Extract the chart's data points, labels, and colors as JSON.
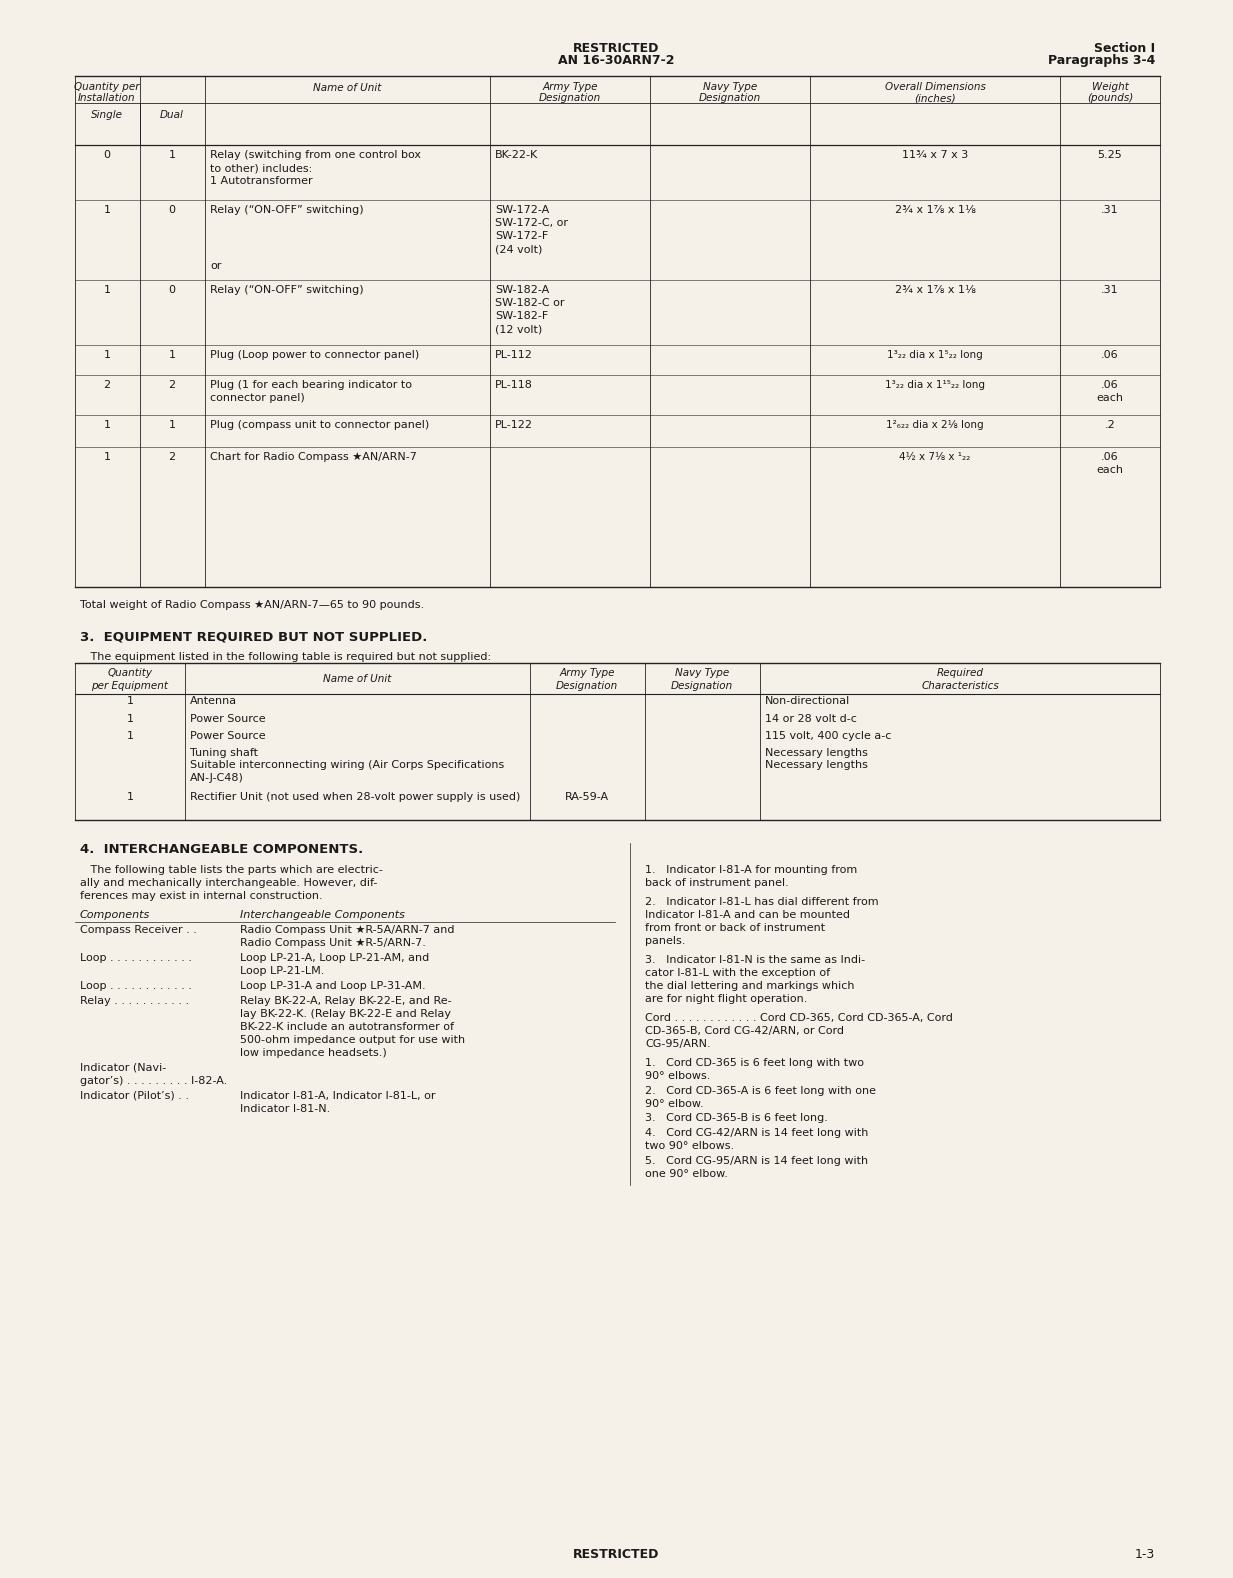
{
  "bg_color": "#f5f0e8",
  "text_color": "#1a1a1a",
  "header_center_1": "RESTRICTED",
  "header_center_2": "AN 16-30ARN7-2",
  "header_right_1": "Section I",
  "header_right_2": "Paragraphs 3-4",
  "page_num": "1-3",
  "footer_center": "RESTRICTED",
  "table1_footnote": "Total weight of Radio Compass ★AN/ARN-7—65 to 90 pounds.",
  "section3_title": "3.  EQUIPMENT REQUIRED BUT NOT SUPPLIED.",
  "section3_intro": "   The equipment listed in the following table is required but not supplied:",
  "section4_title": "4.  INTERCHANGEABLE COMPONENTS."
}
